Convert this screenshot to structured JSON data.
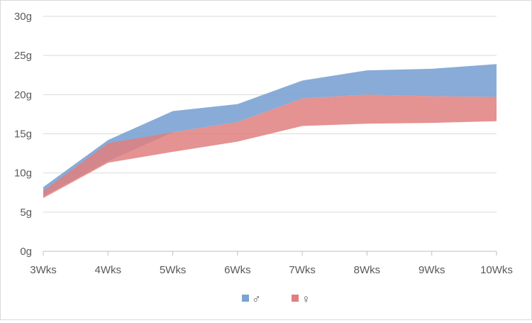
{
  "chart_data": {
    "type": "area",
    "categories": [
      "3Wks",
      "4Wks",
      "5Wks",
      "6Wks",
      "7Wks",
      "8Wks",
      "9Wks",
      "10Wks"
    ],
    "y_tick_labels": [
      "0g",
      "5g",
      "10g",
      "15g",
      "20g",
      "25g",
      "30g"
    ],
    "y_ticks": [
      0,
      5,
      10,
      15,
      20,
      25,
      30
    ],
    "ylim": [
      0,
      30
    ],
    "grid": true,
    "legend_position": "bottom",
    "series": [
      {
        "name": "♂",
        "color": "#7ba3d3",
        "lower": [
          7.0,
          11.5,
          15.2,
          16.5,
          19.5,
          20.0,
          19.8,
          19.7
        ],
        "upper": [
          8.2,
          14.2,
          17.9,
          18.8,
          21.8,
          23.1,
          23.3,
          23.9
        ]
      },
      {
        "name": "♀",
        "color": "#e07f7f",
        "lower": [
          6.8,
          11.3,
          12.7,
          14.0,
          16.0,
          16.3,
          16.4,
          16.6
        ],
        "upper": [
          7.7,
          13.8,
          15.2,
          16.5,
          19.5,
          20.0,
          19.8,
          19.7
        ]
      }
    ]
  }
}
